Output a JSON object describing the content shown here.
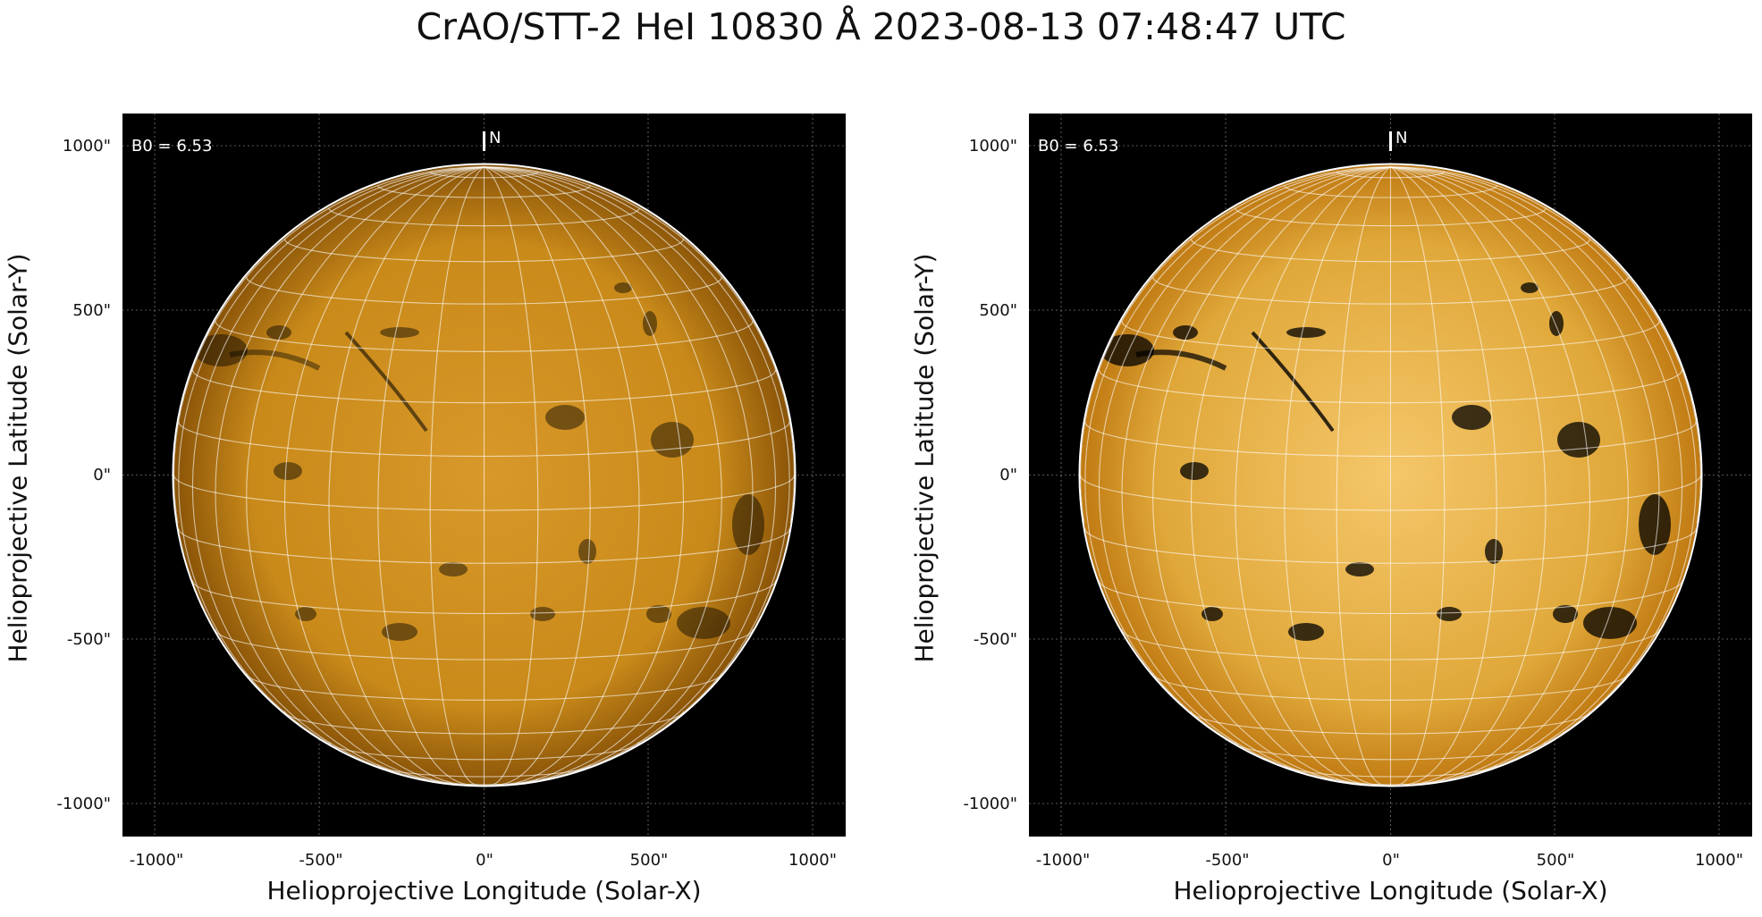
{
  "figure": {
    "title": "CrAO/STT-2 HeI 10830 Å 2023-08-13 07:48:47 UTC"
  },
  "panels": [
    {
      "id": "left",
      "annotation": "B0 = 6.53",
      "north_label": "N",
      "xlabel": "Helioprojective Longitude (Solar-X)",
      "ylabel": "Helioprojective Latitude (Solar-Y)",
      "xticks": [
        "-1000\"",
        "-500\"",
        "0\"",
        "500\"",
        "1000\""
      ],
      "yticks": [
        "1000\"",
        "500\"",
        "0\"",
        "-500\"",
        "-1000\""
      ],
      "disk_color": "#c98a1a",
      "contrast": "normal"
    },
    {
      "id": "right",
      "annotation": "B0 = 6.53",
      "north_label": "N",
      "xlabel": "Helioprojective Longitude (Solar-X)",
      "ylabel": "Helioprojective Latitude (Solar-Y)",
      "xticks": [
        "-1000\"",
        "-500\"",
        "0\"",
        "500\"",
        "1000\""
      ],
      "yticks": [
        "1000\"",
        "500\"",
        "0\"",
        "-500\"",
        "-1000\""
      ],
      "disk_color": "#e0a83a",
      "contrast": "enhanced"
    }
  ]
}
